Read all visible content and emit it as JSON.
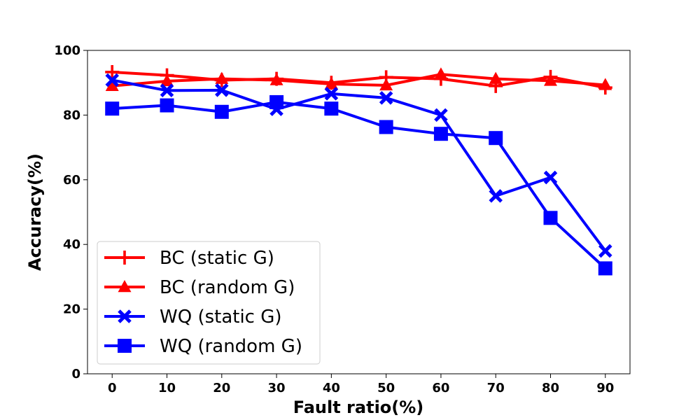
{
  "chart_data": {
    "type": "line",
    "title": "",
    "xlabel": "Fault ratio(%)",
    "ylabel": "Accuracy(%)",
    "x": [
      0,
      10,
      20,
      30,
      40,
      50,
      60,
      70,
      80,
      90
    ],
    "x_tick_labels": [
      "0",
      "10",
      "20",
      "30",
      "40",
      "50",
      "60",
      "70",
      "80",
      "90"
    ],
    "y_tick_labels": [
      "0",
      "20",
      "40",
      "60",
      "80",
      "100"
    ],
    "xlim": [
      -4.5,
      94.5
    ],
    "ylim": [
      0,
      100
    ],
    "grid": false,
    "legend_position": "lower-left",
    "series": [
      {
        "name": "BC (static G)",
        "color": "#ff0000",
        "marker": "plus",
        "values": [
          93.3,
          92.3,
          90.8,
          91.2,
          90.0,
          91.7,
          91.2,
          89.0,
          91.8,
          88.5
        ]
      },
      {
        "name": "BC (random G)",
        "color": "#ff0000",
        "marker": "triangle",
        "values": [
          89.0,
          90.5,
          91.2,
          90.8,
          89.6,
          89.2,
          92.6,
          91.2,
          90.6,
          89.3
        ]
      },
      {
        "name": "WQ (static G)",
        "color": "#0000ff",
        "marker": "x",
        "values": [
          90.8,
          87.6,
          87.7,
          81.8,
          86.6,
          85.3,
          80.0,
          55.0,
          60.7,
          38.0
        ]
      },
      {
        "name": "WQ (random G)",
        "color": "#0000ff",
        "marker": "square",
        "values": [
          82.0,
          83.0,
          81.0,
          84.0,
          82.0,
          76.3,
          74.2,
          72.9,
          48.2,
          32.6
        ]
      }
    ]
  }
}
